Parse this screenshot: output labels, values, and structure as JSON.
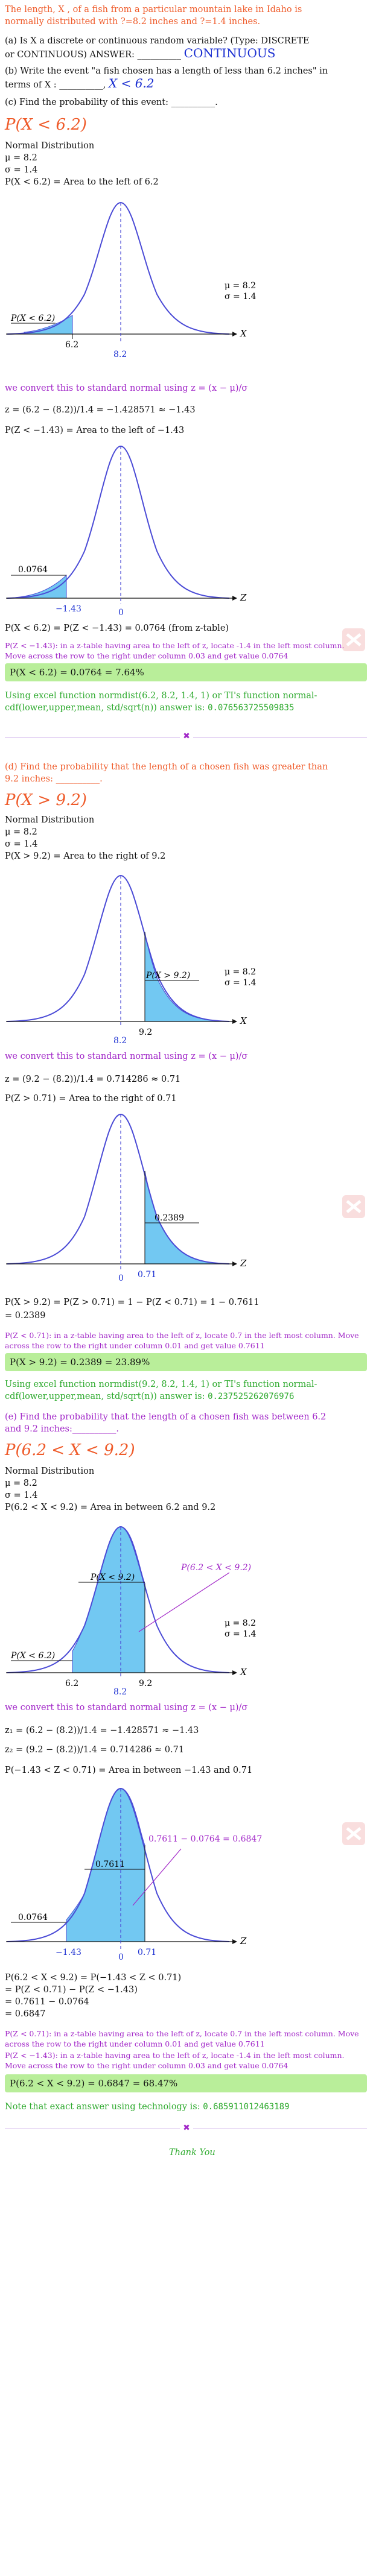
{
  "intro": {
    "line1": "The length, X , of a fish from a particular mountain lake in Idaho is",
    "line2": "normally distributed with ?=8.2 inches and ?=1.4 inches.",
    "qa_line1": "(a) Is X a discrete or continuous random variable? (Type: DISCRETE",
    "qa_line2": "or CONTINUOUS) ANSWER: __________",
    "qa_answer": "CONTINUOUS",
    "qb_line1": "(b) Write the event \"a fish chosen has a length of less than 6.2 inches\" in",
    "qb_line2": "terms of X : __________,",
    "qb_answer": "X < 6.2",
    "qc": "(c) Find the probability of this event: __________."
  },
  "part_c": {
    "heading": "P(X < 6.2)",
    "nd": "Normal Distribution",
    "mu": "μ = 8.2",
    "sigma": "σ = 1.4",
    "area": "P(X < 6.2) = Area to the left of 6.2",
    "convert": "we convert this to standard normal using z = (x − μ)/σ",
    "z": "z = (6.2 − (8.2))/1.4 = −1.428571 ≈ −1.43",
    "pz": "P(Z < −1.43) = Area to the left of −1.43",
    "result": "P(X < 6.2) = P(Z < −1.43) = 0.0764 (from z-table)",
    "note": "P(Z < −1.43): in a z-table having area to the left of z, locate -1.4 in the left most column. Move across the row to the right under column 0.03 and get value 0.0764",
    "answer": "P(X < 6.2) = 0.0764 = 7.64%",
    "excel_l1": "Using excel function normdist(6.2, 8.2, 1.4, 1) or TI's function normal-",
    "excel_l2": "cdf(lower,upper,mean, std/sqrt(n)) answer is: ",
    "excel_val": "0.076563725509835",
    "graph1": {
      "label": "P(X < 6.2)",
      "tick_a": "6.2",
      "tick_mean": "8.2",
      "mu": "μ = 8.2",
      "sigma": "σ = 1.4",
      "axis": "X"
    },
    "graph2": {
      "label": "0.0764",
      "tick_a": "−1.43",
      "tick_mean": "0",
      "axis": "Z"
    }
  },
  "part_d": {
    "question_l1": "(d) Find the probability that the length of a chosen fish was greater than",
    "question_l2": "9.2 inches: __________.",
    "heading": "P(X > 9.2)",
    "nd": "Normal Distribution",
    "mu": "μ = 8.2",
    "sigma": "σ = 1.4",
    "area": "P(X > 9.2) = Area to the right of 9.2",
    "convert": "we convert this to standard normal using z = (x − μ)/σ",
    "z": "z = (9.2 − (8.2))/1.4 = 0.714286 ≈ 0.71",
    "pz": "P(Z > 0.71) = Area to the right of 0.71",
    "result_l1": "P(X > 9.2) = P(Z > 0.71) = 1 − P(Z < 0.71) = 1 − 0.7611",
    "result_l2": "= 0.2389",
    "note": "P(Z < 0.71): in a z-table having area to the left of z, locate 0.7 in the left most column. Move across the row to the right under column 0.01 and get value 0.7611",
    "answer": "P(X > 9.2) = 0.2389 = 23.89%",
    "excel_l1": "Using excel function normdist(9.2, 8.2, 1.4, 1) or TI's function normal-",
    "excel_l2": "cdf(lower,upper,mean, std/sqrt(n)) answer is: ",
    "excel_val": "0.237525262076976",
    "graph1": {
      "label": "P(X > 9.2)",
      "tick_b": "9.2",
      "tick_mean": "8.2",
      "mu": "μ = 8.2",
      "sigma": "σ = 1.4",
      "axis": "X"
    },
    "graph2": {
      "label": "0.2389",
      "tick_b": "0.71",
      "tick_mean": "0",
      "axis": "Z"
    }
  },
  "part_e": {
    "question_l1": "(e) Find the probability that the length of a chosen fish was between 6.2",
    "question_l2": "and 9.2 inches:__________.",
    "heading": "P(6.2 < X < 9.2)",
    "nd": "Normal Distribution",
    "mu": "μ = 8.2",
    "sigma": "σ = 1.4",
    "area": "P(6.2 < X < 9.2) = Area in between 6.2 and 9.2",
    "convert": "we convert this to standard normal using z = (x − μ)/σ",
    "z1": "z₁ = (6.2 − (8.2))/1.4 = −1.428571 ≈ −1.43",
    "z2": "z₂ = (9.2 − (8.2))/1.4 = 0.714286 ≈ 0.71",
    "pz": "P(−1.43 < Z < 0.71) = Area in between −1.43 and 0.71",
    "result_l1": "P(6.2 < X < 9.2) = P(−1.43 < Z < 0.71)",
    "result_l2": "= P(Z < 0.71) − P(Z < −1.43)",
    "result_l3": "= 0.7611 − 0.0764",
    "result_l4": "= 0.6847",
    "note1": "P(Z < 0.71): in a z-table having area to the left of z, locate 0.7 in the left most column. Move across the row to the right under column 0.01 and get value 0.7611",
    "note2": "P(Z < −1.43): in a z-table having area to the left of z, locate -1.4 in the left most column. Move across the row to the right under column 0.03 and get value 0.0764",
    "answer": "P(6.2 < X < 9.2) = 0.6847 = 68.47%",
    "exact_label": "Note that exact answer using technology is: ",
    "exact_val": "0.685911012463189",
    "graph1": {
      "label_mid": "P(6.2 < X < 9.2)",
      "label_left": "P(X < 6.2)",
      "label_center": "P(X < 9.2)",
      "tick_a": "6.2",
      "tick_b": "9.2",
      "tick_mean": "8.2",
      "mu": "μ = 8.2",
      "sigma": "σ = 1.4",
      "axis": "X"
    },
    "graph2": {
      "label_mid": "0.7611 − 0.0764 = 0.6847",
      "label_center": "0.7611",
      "label_left": "0.0764",
      "tick_a": "−1.43",
      "tick_b": "0.71",
      "tick_mean": "0",
      "axis": "Z"
    }
  },
  "footer": {
    "thanks": "Thank You"
  },
  "colors": {
    "accent_orange": "#ef5b2a",
    "accent_purple": "#a228c8",
    "answer_green": "#b9ee9a",
    "curve": "#4b4bd6",
    "shade": "#72c8f2"
  }
}
